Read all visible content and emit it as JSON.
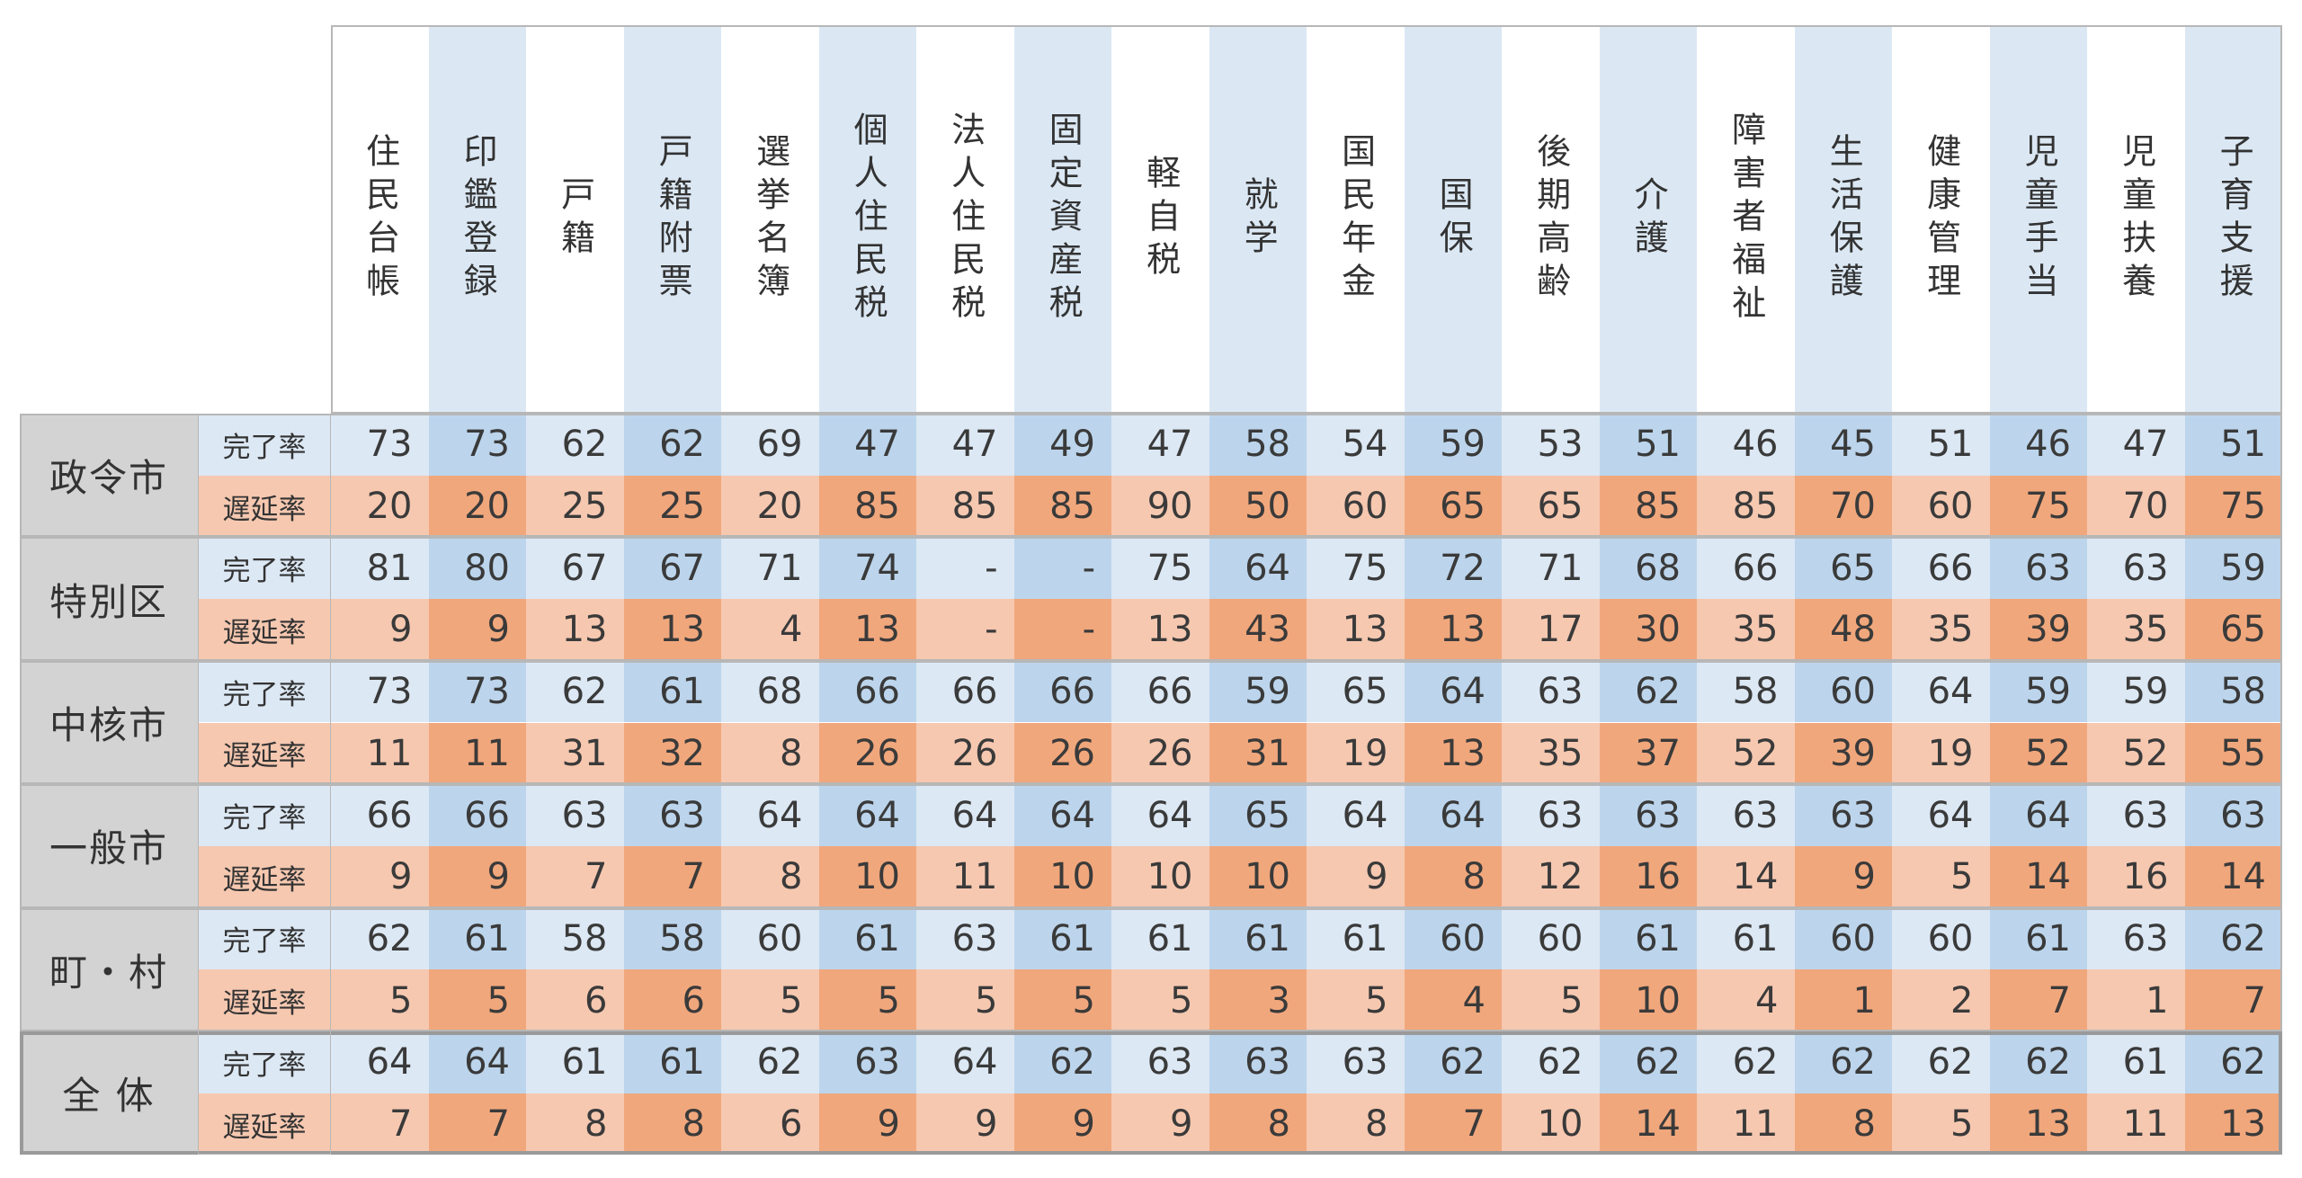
{
  "colors": {
    "header_odd": "#ffffff",
    "header_even": "#dbe8f4",
    "comp_odd": "#dce8f4",
    "comp_even": "#bcd5ec",
    "delay_odd": "#f6c8b0",
    "delay_even": "#f1a77c",
    "category_bg": "#d3d3d3",
    "grid_line": "#b7b7b7"
  },
  "chart_data": {
    "type": "table",
    "columns": [
      "住民台帳",
      "印鑑登録",
      "戸籍",
      "戸籍附票",
      "選挙名簿",
      "個人住民税",
      "法人住民税",
      "固定資産税",
      "軽自税",
      "就学",
      "国民年金",
      "国保",
      "後期高齢",
      "介護",
      "障害者福祉",
      "生活保護",
      "健康管理",
      "児童手当",
      "児童扶養",
      "子育支援"
    ],
    "groups": [
      {
        "name": "政令市",
        "rows": [
          {
            "metric": "完了率",
            "values": [
              "73",
              "73",
              "62",
              "62",
              "69",
              "47",
              "47",
              "49",
              "47",
              "58",
              "54",
              "59",
              "53",
              "51",
              "46",
              "45",
              "51",
              "46",
              "47",
              "51"
            ]
          },
          {
            "metric": "遅延率",
            "values": [
              "20",
              "20",
              "25",
              "25",
              "20",
              "85",
              "85",
              "85",
              "90",
              "50",
              "60",
              "65",
              "65",
              "85",
              "85",
              "70",
              "60",
              "75",
              "70",
              "75"
            ]
          }
        ]
      },
      {
        "name": "特別区",
        "rows": [
          {
            "metric": "完了率",
            "values": [
              "81",
              "80",
              "67",
              "67",
              "71",
              "74",
              "-",
              "-",
              "75",
              "64",
              "75",
              "72",
              "71",
              "68",
              "66",
              "65",
              "66",
              "63",
              "63",
              "59"
            ]
          },
          {
            "metric": "遅延率",
            "values": [
              "9",
              "9",
              "13",
              "13",
              "4",
              "13",
              "-",
              "-",
              "13",
              "43",
              "13",
              "13",
              "17",
              "30",
              "35",
              "48",
              "35",
              "39",
              "35",
              "65"
            ]
          }
        ]
      },
      {
        "name": "中核市",
        "rows": [
          {
            "metric": "完了率",
            "values": [
              "73",
              "73",
              "62",
              "61",
              "68",
              "66",
              "66",
              "66",
              "66",
              "59",
              "65",
              "64",
              "63",
              "62",
              "58",
              "60",
              "64",
              "59",
              "59",
              "58"
            ]
          },
          {
            "metric": "遅延率",
            "values": [
              "11",
              "11",
              "31",
              "32",
              "8",
              "26",
              "26",
              "26",
              "26",
              "31",
              "19",
              "13",
              "35",
              "37",
              "52",
              "39",
              "19",
              "52",
              "52",
              "55"
            ]
          }
        ]
      },
      {
        "name": "一般市",
        "rows": [
          {
            "metric": "完了率",
            "values": [
              "66",
              "66",
              "63",
              "63",
              "64",
              "64",
              "64",
              "64",
              "64",
              "65",
              "64",
              "64",
              "63",
              "63",
              "63",
              "63",
              "64",
              "64",
              "63",
              "63"
            ]
          },
          {
            "metric": "遅延率",
            "values": [
              "9",
              "9",
              "7",
              "7",
              "8",
              "10",
              "11",
              "10",
              "10",
              "10",
              "9",
              "8",
              "12",
              "16",
              "14",
              "9",
              "5",
              "14",
              "16",
              "14"
            ]
          }
        ]
      },
      {
        "name": "町・村",
        "rows": [
          {
            "metric": "完了率",
            "values": [
              "62",
              "61",
              "58",
              "58",
              "60",
              "61",
              "63",
              "61",
              "61",
              "61",
              "61",
              "60",
              "60",
              "61",
              "61",
              "60",
              "60",
              "61",
              "63",
              "62"
            ]
          },
          {
            "metric": "遅延率",
            "values": [
              "5",
              "5",
              "6",
              "6",
              "5",
              "5",
              "5",
              "5",
              "5",
              "3",
              "5",
              "4",
              "5",
              "10",
              "4",
              "1",
              "2",
              "7",
              "1",
              "7"
            ]
          }
        ]
      },
      {
        "name": "全 体",
        "rows": [
          {
            "metric": "完了率",
            "values": [
              "64",
              "64",
              "61",
              "61",
              "62",
              "63",
              "64",
              "62",
              "63",
              "63",
              "63",
              "62",
              "62",
              "62",
              "62",
              "62",
              "62",
              "62",
              "61",
              "62"
            ]
          },
          {
            "metric": "遅延率",
            "values": [
              "7",
              "7",
              "8",
              "8",
              "6",
              "9",
              "9",
              "9",
              "9",
              "8",
              "8",
              "7",
              "10",
              "14",
              "11",
              "8",
              "5",
              "13",
              "11",
              "13"
            ]
          }
        ]
      }
    ]
  }
}
